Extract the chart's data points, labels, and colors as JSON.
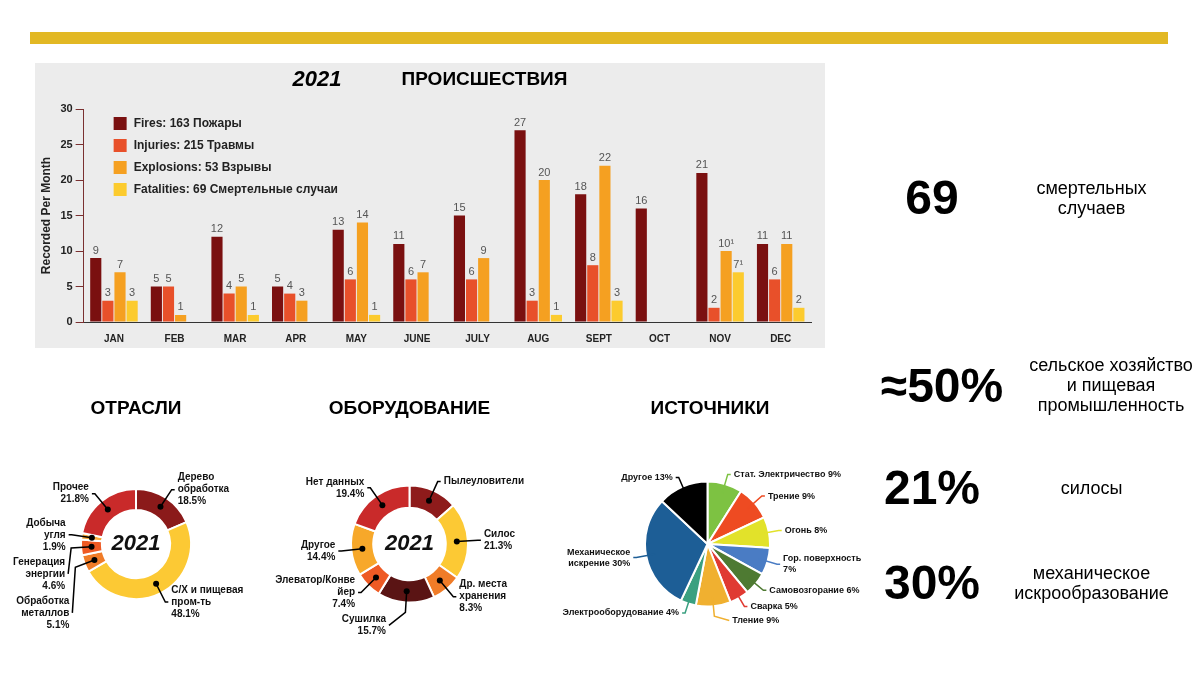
{
  "chart_data": [
    {
      "type": "bar",
      "title": "2021",
      "subtitle": "ПРОИСШЕСТВИЯ",
      "ylabel": "Recorded Per Month",
      "categories": [
        "JAN",
        "FEB",
        "MAR",
        "APR",
        "MAY",
        "JUNE",
        "JULY",
        "AUG",
        "SEPT",
        "OCT",
        "NOV",
        "DEC"
      ],
      "ylim": [
        0,
        30
      ],
      "yticks": [
        0,
        5,
        10,
        15,
        20,
        25,
        30
      ],
      "legend": "top left",
      "series": [
        {
          "name": "Fires: 163 Пожары",
          "color": "#7a1010",
          "values": [
            9,
            5,
            12,
            5,
            13,
            11,
            15,
            27,
            18,
            16,
            21,
            11
          ],
          "value_labels": [
            "9",
            "5",
            "12",
            "5",
            "13",
            "11",
            "15",
            "27",
            "18",
            "16",
            "21",
            "11"
          ]
        },
        {
          "name": "Injuries: 215 Травмы",
          "color": "#e8502a",
          "values": [
            3,
            5,
            4,
            4,
            6,
            6,
            6,
            3,
            8,
            null,
            2,
            6
          ],
          "value_labels": [
            "3",
            "5",
            "4",
            "4",
            "6",
            "6",
            "6",
            "3",
            "8",
            null,
            "2",
            "6"
          ]
        },
        {
          "name": "Explosions: 53 Взрывы",
          "color": "#f5a021",
          "values": [
            7,
            1,
            5,
            3,
            14,
            7,
            9,
            20,
            22,
            null,
            10,
            11
          ],
          "value_labels": [
            "7",
            "1",
            "5",
            "3",
            "14",
            "7",
            "9",
            "20",
            "22",
            null,
            "10¹",
            "11"
          ]
        },
        {
          "name": "Fatalities: 69 Смертельные случаи",
          "color": "#fccb2e",
          "values": [
            3,
            null,
            1,
            null,
            1,
            null,
            null,
            1,
            3,
            null,
            7,
            2
          ],
          "value_labels": [
            "3",
            null,
            "1",
            null,
            "1",
            null,
            null,
            "1",
            "3",
            null,
            "7¹",
            "2"
          ]
        }
      ]
    },
    {
      "type": "donut",
      "title": "ОТРАСЛИ",
      "annotations": [
        "2021"
      ],
      "categories": [
        "Дерево обработка",
        "С/Х и пищевая пром-ть",
        "Обработка металлов",
        "Генерация энергии",
        "Добыча угля",
        "Прочее"
      ],
      "values": [
        18.5,
        48.1,
        5.1,
        4.6,
        1.9,
        21.8
      ],
      "value_labels": [
        "18.5%",
        "48.1%",
        "5.1%",
        "4.6%",
        "1.9%",
        "21.8%"
      ],
      "colors": [
        "#8b1a1a",
        "#fcc934",
        "#f07c28",
        "#ee5a24",
        "#f7a83a",
        "#c92a2a"
      ]
    },
    {
      "type": "donut",
      "title": "ОБОРУДОВАНИЕ",
      "annotations": [
        "2021"
      ],
      "categories": [
        "Пылеуловители",
        "Силос",
        "Др. места хранения",
        "Сушилка",
        "Элеватор/Конвейер",
        "Другое",
        "Нет данных"
      ],
      "values": [
        13.5,
        21.3,
        8.3,
        15.7,
        7.4,
        14.4,
        19.4
      ],
      "value_labels": [
        null,
        "21.3%",
        "8.3%",
        "15.7%",
        "7.4%",
        "14.4%",
        "19.4%"
      ],
      "colors": [
        "#8e1b1b",
        "#fcc934",
        "#f07c28",
        "#5a1414",
        "#ee5a24",
        "#f7a82a",
        "#c92a2a"
      ]
    },
    {
      "type": "pie",
      "title": "ИСТОЧНИКИ",
      "categories": [
        "Стат. Электричество",
        "Трение",
        "Огонь",
        "Гор. поверхность",
        "Самовозгорание",
        "Сварка",
        "Тление",
        "Электрооборудование",
        "Механическое искрение",
        "Другое"
      ],
      "values": [
        9,
        9,
        8,
        7,
        6,
        5,
        9,
        4,
        30,
        13
      ],
      "value_labels": [
        "9%",
        "9%",
        "8%",
        "7%",
        "6%",
        "5%",
        "9%",
        "4%",
        "30%",
        "13%"
      ],
      "colors": [
        "#7dc242",
        "#ee4b22",
        "#e2e22a",
        "#4a7cc4",
        "#4e7a32",
        "#e03a32",
        "#f0b030",
        "#3aa080",
        "#1d5e96",
        "#000000"
      ]
    },
    {
      "type": "other",
      "annotations": [
        "69",
        "смертельных случаев",
        "≈50%",
        "сельское хозяйство и пищевая промышленность",
        "21%",
        "силосы",
        "30%",
        "механическое искрообразование"
      ]
    }
  ]
}
